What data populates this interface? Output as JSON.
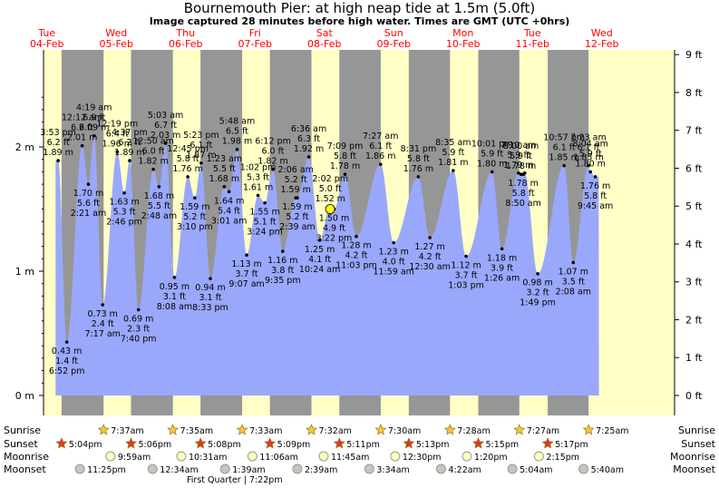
{
  "title": "Bournemouth Pier: at high  neap tide at 1.5m (5.0ft)",
  "subtitle": "Image captured 28 minutes before high water. Times are GMT (UTC +0hrs)",
  "colors": {
    "tide_fill": "#9aa8fc",
    "day_bg": "#ffffc6",
    "night_bg": "#969696",
    "day_label": "#ff0000",
    "current_marker": "#ffff00"
  },
  "chart_data": {
    "type": "area",
    "title": "Bournemouth Pier: at high  neap tide at 1.5m (5.0ft)",
    "x_unit": "time (GMT), Tue 04-Feb to Wed 12-Feb",
    "y_left_unit": "m",
    "y_right_unit": "ft",
    "ylim_m": [
      -0.2,
      2.8
    ],
    "y_left_ticks": [
      "0 m",
      "1 m",
      "2 m"
    ],
    "y_right_ticks": [
      "0 ft",
      "1 ft",
      "2 ft",
      "3 ft",
      "4 ft",
      "5 ft",
      "6 ft",
      "7 ft",
      "8 ft",
      "9 ft"
    ],
    "days": [
      {
        "name": "Tue",
        "date": "04-Feb"
      },
      {
        "name": "Wed",
        "date": "05-Feb"
      },
      {
        "name": "Thu",
        "date": "06-Feb"
      },
      {
        "name": "Fri",
        "date": "07-Feb"
      },
      {
        "name": "Sat",
        "date": "08-Feb"
      },
      {
        "name": "Sun",
        "date": "09-Feb"
      },
      {
        "name": "Mon",
        "date": "10-Feb"
      },
      {
        "name": "Tue",
        "date": "11-Feb"
      },
      {
        "name": "Wed",
        "date": "12-Feb"
      }
    ],
    "sun": [
      {
        "day": 0,
        "sunset": "5:04pm"
      },
      {
        "day": 1,
        "sunrise": "7:37am",
        "sunset": "5:06pm"
      },
      {
        "day": 2,
        "sunrise": "7:35am",
        "sunset": "5:08pm"
      },
      {
        "day": 3,
        "sunrise": "7:33am",
        "sunset": "5:09pm"
      },
      {
        "day": 4,
        "sunrise": "7:32am",
        "sunset": "5:11pm"
      },
      {
        "day": 5,
        "sunrise": "7:30am",
        "sunset": "5:13pm"
      },
      {
        "day": 6,
        "sunrise": "7:28am",
        "sunset": "5:15pm"
      },
      {
        "day": 7,
        "sunrise": "7:27am",
        "sunset": "5:17pm"
      },
      {
        "day": 8,
        "sunrise": "7:25am"
      }
    ],
    "moon": [
      {
        "day": 0,
        "moonset": "11:25pm"
      },
      {
        "day": 1,
        "moonrise": "9:59am"
      },
      {
        "day": 2,
        "moonrise": "10:31am",
        "moonset": "12:34am"
      },
      {
        "day": 3,
        "moonrise": "11:06am",
        "moonset": "1:39am"
      },
      {
        "day": 4,
        "moonrise": "11:45am",
        "moonset": "2:39am"
      },
      {
        "day": 5,
        "moonrise": "12:30pm",
        "moonset": "3:34am"
      },
      {
        "day": 6,
        "moonrise": "1:20pm",
        "moonset": "4:22am"
      },
      {
        "day": 7,
        "moonrise": "2:15pm",
        "moonset": "5:04am"
      },
      {
        "day": 8,
        "moonset": "5:40am"
      }
    ],
    "row_labels": [
      "Sunrise",
      "Sunset",
      "Moonrise",
      "Moonset"
    ],
    "moon_phase": "First Quarter | 7:22pm",
    "tides": [
      {
        "time": "3:53 pm",
        "d": 0,
        "h": 15.88,
        "ft": "6.2 ft",
        "m": 1.89,
        "type": "high"
      },
      {
        "time": "6:52 pm",
        "d": 0,
        "h": 18.87,
        "ft": "1.4 ft",
        "m": 0.43,
        "type": "low"
      },
      {
        "time": "12:12 am",
        "d": 1,
        "h": 0.2,
        "ft": "6.6 ft",
        "m": 2.01,
        "type": "high"
      },
      {
        "time": "2:21 am",
        "d": 1,
        "h": 2.35,
        "ft": "5.6 ft",
        "m": 1.7,
        "type": "low"
      },
      {
        "time": "4:19 am",
        "d": 1,
        "h": 4.32,
        "ft": "6.9 ft",
        "m": 2.09,
        "type": "high"
      },
      {
        "time": "7:17 am",
        "d": 1,
        "h": 7.28,
        "ft": "2.4 ft",
        "m": 0.73,
        "type": "low"
      },
      {
        "time": "12:19 pm",
        "d": 1,
        "h": 12.32,
        "ft": "6.4 ft",
        "m": 1.96,
        "type": "high"
      },
      {
        "time": "2:46 pm",
        "d": 1,
        "h": 14.77,
        "ft": "5.3 ft",
        "m": 1.63,
        "type": "low"
      },
      {
        "time": "4:37 pm",
        "d": 1,
        "h": 16.62,
        "ft": "6.2 ft",
        "m": 1.89,
        "type": "high"
      },
      {
        "time": "7:40 pm",
        "d": 1,
        "h": 19.67,
        "ft": "2.3 ft",
        "m": 0.69,
        "type": "low"
      },
      {
        "time": "12:50 am",
        "d": 2,
        "h": 0.83,
        "ft": "6.0 ft",
        "m": 1.82,
        "type": "high"
      },
      {
        "time": "2:48 am",
        "d": 2,
        "h": 2.8,
        "ft": "5.5 ft",
        "m": 1.68,
        "type": "low"
      },
      {
        "time": "5:03 am",
        "d": 2,
        "h": 5.05,
        "ft": "6.7 ft",
        "m": 2.03,
        "type": "high"
      },
      {
        "time": "8:08 am",
        "d": 2,
        "h": 8.13,
        "ft": "3.1 ft",
        "m": 0.95,
        "type": "low"
      },
      {
        "time": "12:45 pm",
        "d": 2,
        "h": 12.75,
        "ft": "5.8 ft",
        "m": 1.76,
        "type": "high"
      },
      {
        "time": "3:10 pm",
        "d": 2,
        "h": 15.17,
        "ft": "5.2 ft",
        "m": 1.59,
        "type": "low"
      },
      {
        "time": "5:23 pm",
        "d": 2,
        "h": 17.38,
        "ft": "6.1 ft",
        "m": 1.87,
        "type": "high"
      },
      {
        "time": "8:33 pm",
        "d": 2,
        "h": 20.55,
        "ft": "3.1 ft",
        "m": 0.94,
        "type": "low"
      },
      {
        "time": "1:23 am",
        "d": 3,
        "h": 1.38,
        "ft": "5.5 ft",
        "m": 1.68,
        "type": "high"
      },
      {
        "time": "3:01 am",
        "d": 3,
        "h": 3.02,
        "ft": "5.4 ft",
        "m": 1.64,
        "type": "low"
      },
      {
        "time": "5:48 am",
        "d": 3,
        "h": 5.8,
        "ft": "6.5 ft",
        "m": 1.98,
        "type": "high"
      },
      {
        "time": "9:07 am",
        "d": 3,
        "h": 9.12,
        "ft": "3.7 ft",
        "m": 1.13,
        "type": "low"
      },
      {
        "time": "1:02 pm",
        "d": 3,
        "h": 13.03,
        "ft": "5.3 ft",
        "m": 1.61,
        "type": "high"
      },
      {
        "time": "3:24 pm",
        "d": 3,
        "h": 15.4,
        "ft": "5.1 ft",
        "m": 1.55,
        "type": "low"
      },
      {
        "time": "6:12 pm",
        "d": 3,
        "h": 18.2,
        "ft": "6.0 ft",
        "m": 1.82,
        "type": "high"
      },
      {
        "time": "9:35 pm",
        "d": 3,
        "h": 21.58,
        "ft": "3.8 ft",
        "m": 1.16,
        "type": "low"
      },
      {
        "time": "2:06 am",
        "d": 4,
        "h": 2.1,
        "ft": "5.2 ft",
        "m": 1.59,
        "type": "high"
      },
      {
        "time": "2:39 am",
        "d": 4,
        "h": 2.65,
        "ft": "5.2 ft",
        "m": 1.59,
        "type": "low"
      },
      {
        "time": "6:36 am",
        "d": 4,
        "h": 6.6,
        "ft": "6.3 ft",
        "m": 1.92,
        "type": "high"
      },
      {
        "time": "10:24 am",
        "d": 4,
        "h": 10.4,
        "ft": "4.1 ft",
        "m": 1.25,
        "type": "low"
      },
      {
        "time": "2:02 pm",
        "d": 4,
        "h": 14.03,
        "ft": "5.0 ft",
        "m": 1.52,
        "type": "high"
      },
      {
        "time": "3:22 pm",
        "d": 4,
        "h": 15.37,
        "ft": "4.9 ft",
        "m": 1.5,
        "type": "low"
      },
      {
        "time": "7:09 pm",
        "d": 4,
        "h": 19.15,
        "ft": "5.8 ft",
        "m": 1.78,
        "type": "high"
      },
      {
        "time": "11:03 pm",
        "d": 4,
        "h": 23.05,
        "ft": "4.2 ft",
        "m": 1.28,
        "type": "low"
      },
      {
        "time": "7:27 am",
        "d": 5,
        "h": 7.45,
        "ft": "6.1 ft",
        "m": 1.86,
        "type": "high"
      },
      {
        "time": "11:59 am",
        "d": 5,
        "h": 11.98,
        "ft": "4.0 ft",
        "m": 1.23,
        "type": "low"
      },
      {
        "time": "8:31 pm",
        "d": 5,
        "h": 20.52,
        "ft": "5.8 ft",
        "m": 1.76,
        "type": "high"
      },
      {
        "time": "12:30 am",
        "d": 6,
        "h": 0.5,
        "ft": "4.2 ft",
        "m": 1.27,
        "type": "low"
      },
      {
        "time": "8:35 am",
        "d": 6,
        "h": 8.58,
        "ft": "5.9 ft",
        "m": 1.81,
        "type": "high"
      },
      {
        "time": "1:03 pm",
        "d": 6,
        "h": 13.05,
        "ft": "3.7 ft",
        "m": 1.12,
        "type": "low"
      },
      {
        "time": "10:01 pm",
        "d": 6,
        "h": 22.02,
        "ft": "5.9 ft",
        "m": 1.8,
        "type": "high"
      },
      {
        "time": "1:26 am",
        "d": 7,
        "h": 1.43,
        "ft": "3.9 ft",
        "m": 1.18,
        "type": "low"
      },
      {
        "time": "7:10 am",
        "d": 7,
        "h": 7.17,
        "ft": "5.9 ft",
        "m": 1.79,
        "type": "high"
      },
      {
        "time": "8:00 am",
        "d": 7,
        "h": 8.0,
        "ft": "5.9 ft",
        "m": 1.78,
        "type": "high"
      },
      {
        "time": "8:50 am",
        "d": 7,
        "h": 8.83,
        "ft": "5.8 ft",
        "m": 1.78,
        "type": "low"
      },
      {
        "time": "9:20 am",
        "d": 7,
        "h": 9.33,
        "ft": "5.9 ft",
        "m": 1.79,
        "type": "high"
      },
      {
        "time": "1:49 pm",
        "d": 7,
        "h": 13.82,
        "ft": "3.2 ft",
        "m": 0.98,
        "type": "low"
      },
      {
        "time": "10:57 pm",
        "d": 7,
        "h": 22.95,
        "ft": "6.1 ft",
        "m": 1.85,
        "type": "high"
      },
      {
        "time": "2:08 am",
        "d": 8,
        "h": 2.13,
        "ft": "3.5 ft",
        "m": 1.07,
        "type": "low"
      },
      {
        "time": "7:23 am",
        "d": 8,
        "h": 7.38,
        "ft": "6.1 ft",
        "m": 1.85,
        "type": "high"
      },
      {
        "time": "8:04 am",
        "d": 8,
        "h": 8.07,
        "ft": "5.9 ft",
        "m": 1.8,
        "type": "high"
      },
      {
        "time": "9:45 am",
        "d": 8,
        "h": 9.75,
        "ft": "5.8 ft",
        "m": 1.76,
        "type": "low"
      }
    ],
    "tide_labels": [
      {
        "lines": [
          "3:53 pm",
          "6.2 ft",
          "1.89 m"
        ],
        "pos": "above",
        "tide": 0
      },
      {
        "lines": [
          "0.43 m",
          "1.4 ft",
          "6:52 pm"
        ],
        "pos": "below",
        "tide": 1
      },
      {
        "lines": [
          "12:12 am",
          "6.6 ft",
          "2.01 m"
        ],
        "pos": "above",
        "tide": 2
      },
      {
        "lines": [
          "1.70 m",
          "5.6 ft",
          "2:21 am"
        ],
        "pos": "below",
        "tide": 3
      },
      {
        "lines": [
          "4:19 am",
          "6.9 ft",
          "2.09 m"
        ],
        "pos": "above",
        "tide": 4
      },
      {
        "lines": [
          "0.73 m",
          "2.4 ft",
          "7:17 am"
        ],
        "pos": "below",
        "tide": 5
      },
      {
        "lines": [
          "12:19 pm",
          "6.4 ft",
          "1.96 m"
        ],
        "pos": "above",
        "tide": 6
      },
      {
        "lines": [
          "1.63 m",
          "5.3 ft",
          "2:46 pm"
        ],
        "pos": "below",
        "tide": 7
      },
      {
        "lines": [
          "4:37 pm",
          "6.2 ft",
          "1.89 m"
        ],
        "pos": "above",
        "tide": 8
      },
      {
        "lines": [
          "0.69 m",
          "2.3 ft",
          "7:40 pm"
        ],
        "pos": "below",
        "tide": 9
      },
      {
        "lines": [
          "12:50 am",
          "6.0 ft",
          "1.82 m"
        ],
        "pos": "above",
        "tide": 10
      },
      {
        "lines": [
          "1.68 m",
          "5.5 ft",
          "2:48 am"
        ],
        "pos": "below",
        "tide": 11
      },
      {
        "lines": [
          "5:03 am",
          "6.7 ft",
          "2.03 m"
        ],
        "pos": "above",
        "tide": 12
      },
      {
        "lines": [
          "0.95 m",
          "3.1 ft",
          "8:08 am"
        ],
        "pos": "below",
        "tide": 13
      },
      {
        "lines": [
          "12:45 pm",
          "5.8 ft",
          "1.76 m"
        ],
        "pos": "above",
        "tide": 14
      },
      {
        "lines": [
          "1.59 m",
          "5.2 ft",
          "3:10 pm"
        ],
        "pos": "below",
        "tide": 15
      },
      {
        "lines": [
          "5:23 pm",
          "6.1 ft",
          "1.87 m"
        ],
        "pos": "above",
        "tide": 16
      },
      {
        "lines": [
          "0.94 m",
          "3.1 ft",
          "8:33 pm"
        ],
        "pos": "below",
        "tide": 17
      },
      {
        "lines": [
          "1:23 am",
          "5.5 ft",
          "1.68 m"
        ],
        "pos": "above",
        "tide": 18
      },
      {
        "lines": [
          "1.64 m",
          "5.4 ft",
          "3:01 am"
        ],
        "pos": "below",
        "tide": 19
      },
      {
        "lines": [
          "5:48 am",
          "6.5 ft",
          "1.98 m"
        ],
        "pos": "above",
        "tide": 20
      },
      {
        "lines": [
          "1.13 m",
          "3.7 ft",
          "9:07 am"
        ],
        "pos": "below",
        "tide": 21
      },
      {
        "lines": [
          "1:02 pm",
          "5.3 ft",
          "1.61 m"
        ],
        "pos": "above",
        "tide": 22
      },
      {
        "lines": [
          "1.55 m",
          "5.1 ft",
          "3:24 pm"
        ],
        "pos": "below",
        "tide": 23
      },
      {
        "lines": [
          "6:12 pm",
          "6.0 ft",
          "1.82 m"
        ],
        "pos": "above",
        "tide": 24
      },
      {
        "lines": [
          "1.16 m",
          "3.8 ft",
          "9:35 pm"
        ],
        "pos": "below",
        "tide": 25
      },
      {
        "lines": [
          "2:06 am",
          "5.2 ft",
          "1.59 m"
        ],
        "pos": "above",
        "tide": 26
      },
      {
        "lines": [
          "1.59 m",
          "5.2 ft",
          "2:39 am"
        ],
        "pos": "below",
        "tide": 27
      },
      {
        "lines": [
          "6:36 am",
          "6.3 ft",
          "1.92 m"
        ],
        "pos": "above",
        "tide": 28
      },
      {
        "lines": [
          "1.25 m",
          "4.1 ft",
          "10:24 am"
        ],
        "pos": "below",
        "tide": 29
      },
      {
        "lines": [
          "2:02 pm",
          "5.0 ft",
          "1.52 m"
        ],
        "pos": "above",
        "tide": 30
      },
      {
        "lines": [
          "1.50 m",
          "4.9 ft",
          "3:22 pm"
        ],
        "pos": "below",
        "tide": 31
      },
      {
        "lines": [
          "7:09 pm",
          "5.8 ft",
          "1.78 m"
        ],
        "pos": "above",
        "tide": 32
      },
      {
        "lines": [
          "1.28 m",
          "4.2 ft",
          "11:03 pm"
        ],
        "pos": "below",
        "tide": 33
      },
      {
        "lines": [
          "7:27 am",
          "6.1 ft",
          "1.86 m"
        ],
        "pos": "above",
        "tide": 34
      },
      {
        "lines": [
          "1.23 m",
          "4.0 ft",
          "11:59 am"
        ],
        "pos": "below",
        "tide": 35
      },
      {
        "lines": [
          "8:31 pm",
          "5.8 ft",
          "1.76 m"
        ],
        "pos": "above",
        "tide": 36
      },
      {
        "lines": [
          "1.27 m",
          "4.2 ft",
          "12:30 am"
        ],
        "pos": "below",
        "tide": 37
      },
      {
        "lines": [
          "8:35 am",
          "5.9 ft",
          "1.81 m"
        ],
        "pos": "above",
        "tide": 38
      },
      {
        "lines": [
          "1.12 m",
          "3.7 ft",
          "1:03 pm"
        ],
        "pos": "below",
        "tide": 39
      },
      {
        "lines": [
          "10:01 pm",
          "5.9 ft",
          "1.80 m"
        ],
        "pos": "above",
        "tide": 40
      },
      {
        "lines": [
          "1.18 m",
          "3.9 ft",
          "1:26 am"
        ],
        "pos": "below",
        "tide": 41
      },
      {
        "lines": [
          "7:10 am",
          "5.9 ft",
          "1.79 m"
        ],
        "pos": "above",
        "tide": 42
      },
      {
        "lines": [
          "8:00 am",
          "5.9 ft",
          "1.78 m"
        ],
        "pos": "above",
        "tide": 43
      },
      {
        "lines": [
          "1.78 m",
          "5.8 ft",
          "8:50 am"
        ],
        "pos": "below",
        "tide": 44
      },
      {
        "lines": [
          "0.98 m",
          "3.2 ft",
          "1:49 pm"
        ],
        "pos": "below",
        "tide": 46
      },
      {
        "lines": [
          "10:57 pm",
          "6.1 ft",
          "1.85 m"
        ],
        "pos": "above",
        "tide": 47
      },
      {
        "lines": [
          "1.07 m",
          "3.5 ft",
          "2:08 am"
        ],
        "pos": "below",
        "tide": 48
      },
      {
        "lines": [
          "7:23 am",
          "6.1 ft",
          "1.85 m"
        ],
        "pos": "above",
        "tide": 49
      },
      {
        "lines": [
          "8:04 am",
          "5.9 ft",
          "1.80 m"
        ],
        "pos": "above",
        "tide": 50
      },
      {
        "lines": [
          "1.76 m",
          "5.8 ft",
          "9:45 am"
        ],
        "pos": "below",
        "tide": 51
      }
    ],
    "current_tide": {
      "d": 4,
      "h": 14.0,
      "m": 1.5
    }
  }
}
